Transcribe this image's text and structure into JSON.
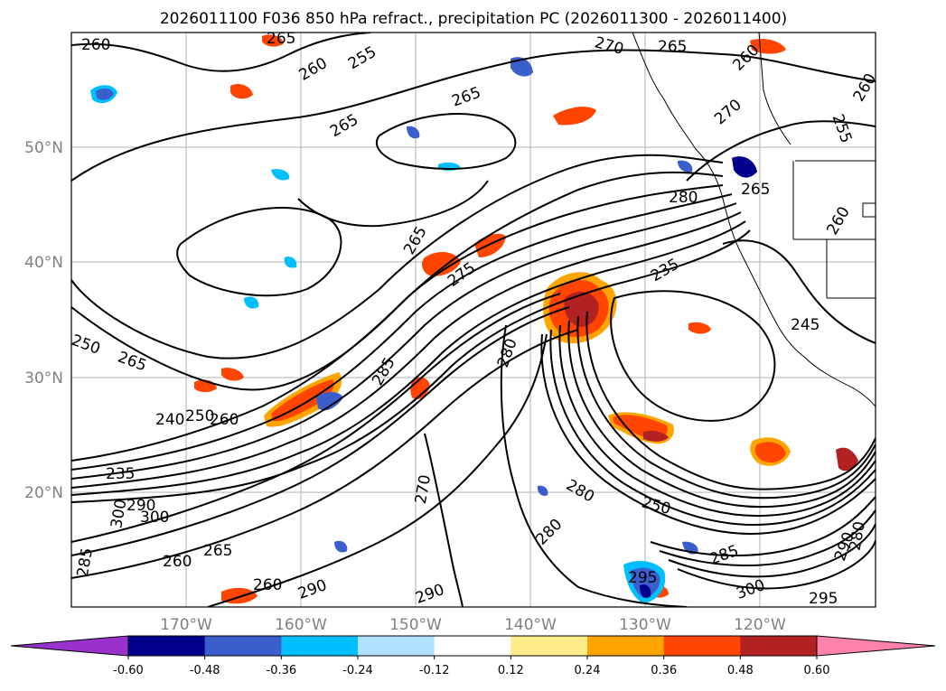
{
  "title": "2026011100 F036 850 hPa refract., precipitation PC (2026011300 - 2026011400)",
  "map": {
    "lon_labels": [
      "170°W",
      "160°W",
      "150°W",
      "140°W",
      "130°W",
      "120°W"
    ],
    "lat_labels": [
      "50°N",
      "40°N",
      "30°N",
      "20°N"
    ],
    "contour_labels": [
      {
        "text": "260",
        "id": "c1"
      },
      {
        "text": "265",
        "id": "c2"
      },
      {
        "text": "260",
        "id": "c3"
      },
      {
        "text": "255",
        "id": "c4"
      },
      {
        "text": "265",
        "id": "c5"
      },
      {
        "text": "265",
        "id": "c6"
      },
      {
        "text": "270",
        "id": "c7"
      },
      {
        "text": "265",
        "id": "c8"
      },
      {
        "text": "260",
        "id": "c9"
      },
      {
        "text": "260",
        "id": "c10"
      },
      {
        "text": "270",
        "id": "c11"
      },
      {
        "text": "255",
        "id": "c12"
      },
      {
        "text": "265",
        "id": "c13"
      },
      {
        "text": "280",
        "id": "c14"
      },
      {
        "text": "265",
        "id": "c15"
      },
      {
        "text": "260",
        "id": "c16"
      },
      {
        "text": "275",
        "id": "c17"
      },
      {
        "text": "235",
        "id": "c18"
      },
      {
        "text": "245",
        "id": "c19"
      },
      {
        "text": "250",
        "id": "c20"
      },
      {
        "text": "265",
        "id": "c21"
      },
      {
        "text": "240",
        "id": "c22"
      },
      {
        "text": "250",
        "id": "c23"
      },
      {
        "text": "260",
        "id": "c24"
      },
      {
        "text": "285",
        "id": "c25"
      },
      {
        "text": "280",
        "id": "c26"
      },
      {
        "text": "235",
        "id": "c27"
      },
      {
        "text": "290",
        "id": "c28"
      },
      {
        "text": "300",
        "id": "c29"
      },
      {
        "text": "300",
        "id": "c30"
      },
      {
        "text": "270",
        "id": "c31"
      },
      {
        "text": "280",
        "id": "c32"
      },
      {
        "text": "250",
        "id": "c33"
      },
      {
        "text": "265",
        "id": "c34"
      },
      {
        "text": "260",
        "id": "c35"
      },
      {
        "text": "280",
        "id": "c36"
      },
      {
        "text": "285",
        "id": "c37"
      },
      {
        "text": "295",
        "id": "c38"
      },
      {
        "text": "290",
        "id": "c39"
      },
      {
        "text": "300",
        "id": "c40"
      },
      {
        "text": "290",
        "id": "c41"
      },
      {
        "text": "260",
        "id": "c42"
      },
      {
        "text": "285",
        "id": "c43"
      },
      {
        "text": "290",
        "id": "c44"
      },
      {
        "text": "280",
        "id": "c45"
      },
      {
        "text": "295",
        "id": "c46"
      }
    ]
  },
  "colorbar": {
    "colors": [
      "#9932cc",
      "#00008b",
      "#3a5fcd",
      "#00bfff",
      "#b0e2ff",
      "#ffffff",
      "#ffec8b",
      "#ffa500",
      "#ff4500",
      "#b22222",
      "#ff82ab"
    ],
    "labels": [
      "-0.60",
      "-0.48",
      "-0.36",
      "-0.24",
      "-0.12",
      "0.12",
      "0.24",
      "0.36",
      "0.48",
      "0.60"
    ]
  }
}
